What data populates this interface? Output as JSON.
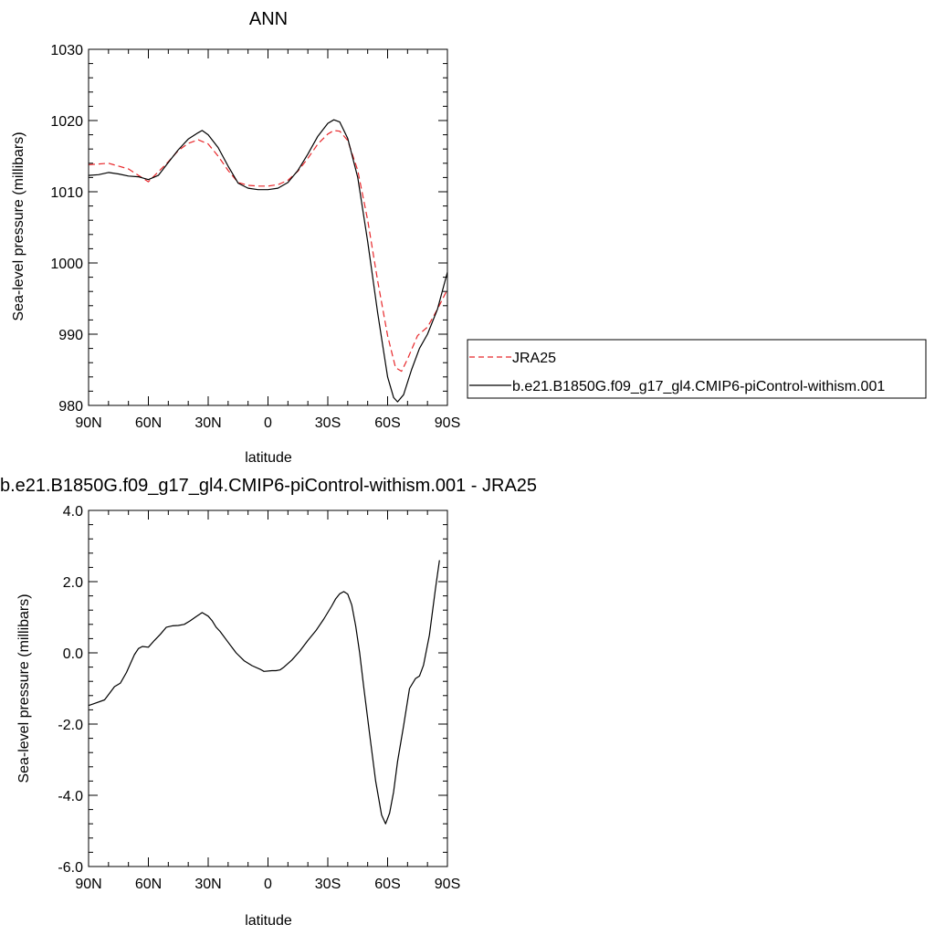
{
  "chart_data": [
    {
      "type": "line",
      "title": "ANN",
      "xlabel": "latitude",
      "ylabel": "Sea-level pressure (millibars)",
      "xlim": [
        90,
        -90
      ],
      "ylim": [
        980,
        1030
      ],
      "x_ticks": [
        90,
        60,
        30,
        0,
        -30,
        -60,
        -90
      ],
      "x_tick_labels": [
        "90N",
        "60N",
        "30N",
        "0",
        "30S",
        "60S",
        "90S"
      ],
      "y_ticks": [
        980,
        990,
        1000,
        1010,
        1020,
        1030
      ],
      "y_tick_labels": [
        "980",
        "990",
        "1000",
        "1010",
        "1020",
        "1030"
      ],
      "grid": false,
      "legend_position": "right",
      "series": [
        {
          "name": "JRA25",
          "color": "#e8282b",
          "dash": "dashed",
          "points": [
            [
              90,
              1013.8
            ],
            [
              80,
              1014.0
            ],
            [
              70,
              1013.2
            ],
            [
              60,
              1011.4
            ],
            [
              50,
              1014.2
            ],
            [
              45,
              1015.8
            ],
            [
              40,
              1016.8
            ],
            [
              35,
              1017.3
            ],
            [
              30,
              1016.7
            ],
            [
              25,
              1015.0
            ],
            [
              20,
              1013.0
            ],
            [
              15,
              1011.3
            ],
            [
              10,
              1010.9
            ],
            [
              5,
              1010.8
            ],
            [
              0,
              1010.8
            ],
            [
              -5,
              1011.0
            ],
            [
              -10,
              1011.6
            ],
            [
              -15,
              1012.9
            ],
            [
              -20,
              1014.7
            ],
            [
              -25,
              1016.7
            ],
            [
              -30,
              1018.1
            ],
            [
              -33,
              1018.6
            ],
            [
              -36,
              1018.5
            ],
            [
              -40,
              1017.2
            ],
            [
              -45,
              1013.0
            ],
            [
              -50,
              1006.0
            ],
            [
              -55,
              997.5
            ],
            [
              -60,
              989.8
            ],
            [
              -64,
              985.3
            ],
            [
              -67,
              984.8
            ],
            [
              -70,
              986.5
            ],
            [
              -75,
              989.8
            ],
            [
              -80,
              991.0
            ],
            [
              -85,
              993.5
            ],
            [
              -90,
              996.3
            ]
          ]
        },
        {
          "name": "b.e21.B1850G.f09_g17_gl4.CMIP6-piControl-withism.001",
          "color": "#000000",
          "dash": "solid",
          "points": [
            [
              90,
              1012.3
            ],
            [
              85,
              1012.4
            ],
            [
              80,
              1012.7
            ],
            [
              75,
              1012.5
            ],
            [
              70,
              1012.2
            ],
            [
              65,
              1012.1
            ],
            [
              60,
              1011.7
            ],
            [
              55,
              1012.3
            ],
            [
              50,
              1014.1
            ],
            [
              45,
              1015.9
            ],
            [
              40,
              1017.4
            ],
            [
              35,
              1018.3
            ],
            [
              33,
              1018.6
            ],
            [
              30,
              1018.0
            ],
            [
              25,
              1016.2
            ],
            [
              20,
              1013.6
            ],
            [
              15,
              1011.2
            ],
            [
              10,
              1010.5
            ],
            [
              5,
              1010.3
            ],
            [
              0,
              1010.3
            ],
            [
              -5,
              1010.5
            ],
            [
              -10,
              1011.3
            ],
            [
              -15,
              1013.0
            ],
            [
              -20,
              1015.3
            ],
            [
              -25,
              1017.8
            ],
            [
              -30,
              1019.6
            ],
            [
              -33,
              1020.1
            ],
            [
              -36,
              1019.8
            ],
            [
              -40,
              1017.5
            ],
            [
              -45,
              1012.0
            ],
            [
              -50,
              1003.0
            ],
            [
              -55,
              993.0
            ],
            [
              -60,
              984.0
            ],
            [
              -63,
              981.1
            ],
            [
              -65,
              980.5
            ],
            [
              -68,
              981.5
            ],
            [
              -72,
              985.0
            ],
            [
              -76,
              988.0
            ],
            [
              -80,
              990.0
            ],
            [
              -85,
              993.5
            ],
            [
              -90,
              998.7
            ]
          ]
        }
      ]
    },
    {
      "type": "line",
      "title": "b.e21.B1850G.f09_g17_gl4.CMIP6-piControl-withism.001 - JRA25",
      "xlabel": "latitude",
      "ylabel": "Sea-level pressure (millibars)",
      "xlim": [
        90,
        -90
      ],
      "ylim": [
        -6.0,
        4.0
      ],
      "x_ticks": [
        90,
        60,
        30,
        0,
        -30,
        -60,
        -90
      ],
      "x_tick_labels": [
        "90N",
        "60N",
        "30N",
        "0",
        "30S",
        "60S",
        "90S"
      ],
      "y_ticks": [
        -6,
        -4,
        -2,
        0,
        2,
        4
      ],
      "y_tick_labels": [
        "-6.0",
        "-4.0",
        "-2.0",
        "0.0",
        "2.0",
        "4.0"
      ],
      "grid": false,
      "series": [
        {
          "color": "#000000",
          "dash": "solid",
          "points": [
            [
              90,
              -1.48
            ],
            [
              87,
              -1.42
            ],
            [
              82,
              -1.32
            ],
            [
              79,
              -1.1
            ],
            [
              77,
              -0.95
            ],
            [
              74,
              -0.85
            ],
            [
              71,
              -0.55
            ],
            [
              67,
              -0.05
            ],
            [
              65,
              0.12
            ],
            [
              63,
              0.18
            ],
            [
              60,
              0.16
            ],
            [
              57,
              0.35
            ],
            [
              54,
              0.52
            ],
            [
              51,
              0.72
            ],
            [
              48,
              0.76
            ],
            [
              45,
              0.77
            ],
            [
              42,
              0.8
            ],
            [
              39,
              0.9
            ],
            [
              36,
              1.02
            ],
            [
              33,
              1.13
            ],
            [
              30,
              1.03
            ],
            [
              28,
              0.9
            ],
            [
              26,
              0.72
            ],
            [
              24,
              0.6
            ],
            [
              20,
              0.3
            ],
            [
              16,
              0.0
            ],
            [
              12,
              -0.22
            ],
            [
              8,
              -0.36
            ],
            [
              4,
              -0.46
            ],
            [
              2,
              -0.52
            ],
            [
              -2,
              -0.5
            ],
            [
              -4,
              -0.5
            ],
            [
              -6,
              -0.48
            ],
            [
              -8,
              -0.4
            ],
            [
              -12,
              -0.2
            ],
            [
              -16,
              0.05
            ],
            [
              -20,
              0.35
            ],
            [
              -24,
              0.62
            ],
            [
              -28,
              0.95
            ],
            [
              -32,
              1.32
            ],
            [
              -34,
              1.52
            ],
            [
              -36,
              1.66
            ],
            [
              -38,
              1.72
            ],
            [
              -40,
              1.65
            ],
            [
              -42,
              1.35
            ],
            [
              -44,
              0.75
            ],
            [
              -46,
              0.0
            ],
            [
              -48,
              -0.95
            ],
            [
              -51,
              -2.3
            ],
            [
              -54,
              -3.6
            ],
            [
              -57,
              -4.55
            ],
            [
              -59,
              -4.8
            ],
            [
              -61,
              -4.5
            ],
            [
              -63,
              -3.9
            ],
            [
              -65,
              -3.05
            ],
            [
              -68,
              -2.05
            ],
            [
              -71,
              -1.0
            ],
            [
              -74,
              -0.72
            ],
            [
              -76,
              -0.65
            ],
            [
              -78,
              -0.35
            ],
            [
              -81,
              0.5
            ],
            [
              -84,
              1.8
            ],
            [
              -86,
              2.6
            ]
          ]
        }
      ]
    }
  ]
}
